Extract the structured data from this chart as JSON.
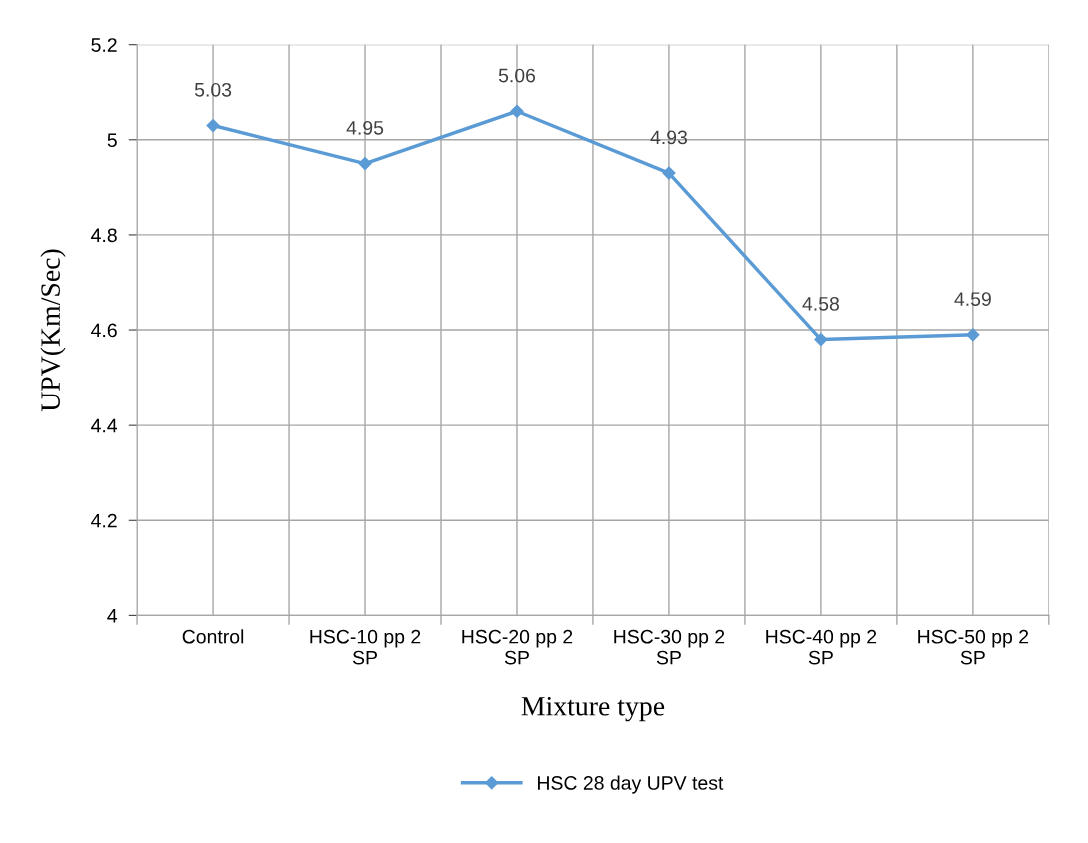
{
  "chart_data": {
    "type": "line",
    "categories": [
      "Control",
      "HSC-10 pp 2 SP",
      "HSC-20 pp 2 SP",
      "HSC-30 pp 2 SP",
      "HSC-40 pp 2 SP",
      "HSC-50 pp 2 SP"
    ],
    "series": [
      {
        "name": "HSC 28 day UPV test",
        "color": "#5b9bd5",
        "values": [
          5.03,
          4.95,
          5.06,
          4.93,
          4.58,
          4.59
        ]
      }
    ],
    "xlabel": "Mixture type",
    "ylabel": "UPV(Km/Sec)",
    "ylim": [
      4,
      5.2
    ],
    "yticks": [
      {
        "value": 4,
        "label": "4"
      },
      {
        "value": 4.2,
        "label": "4.2"
      },
      {
        "value": 4.4,
        "label": "4.4"
      },
      {
        "value": 4.6,
        "label": "4.6"
      },
      {
        "value": 4.8,
        "label": "4.8"
      },
      {
        "value": 5,
        "label": "5"
      },
      {
        "value": 5.2,
        "label": "5.2"
      }
    ],
    "grid": true,
    "legend": "bottom",
    "marker": "diamond",
    "line_style": "solid",
    "data_labels": true
  }
}
